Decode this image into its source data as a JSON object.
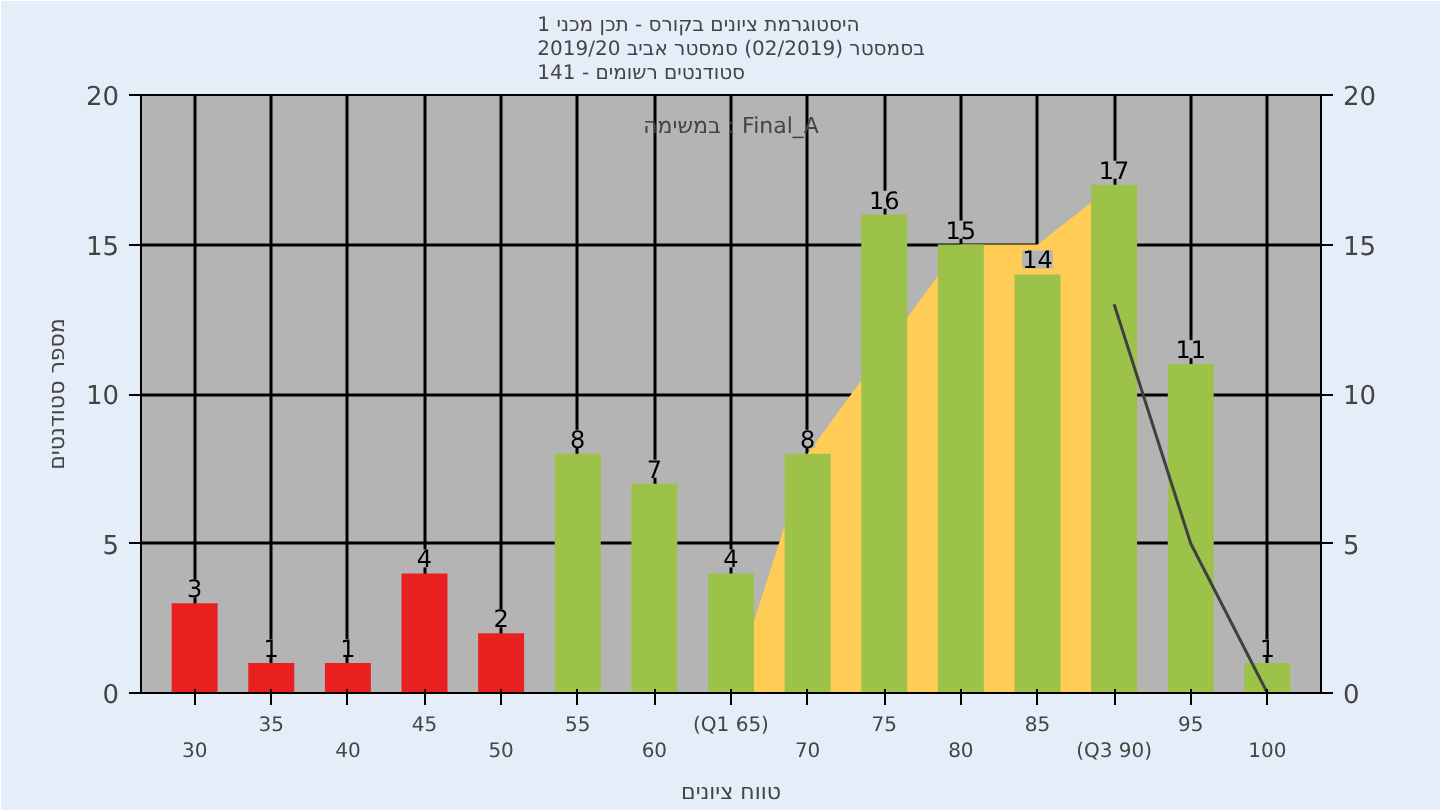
{
  "chart_data": {
    "type": "bar",
    "title": "היסטוגרמת ציונים בקורס - תכן מכני 1\nבסמסטר (02/2019) סמסטר אביב 2019/20\nסטודנטים רשומים - 141",
    "xlabel": "טווח ציונים",
    "ylabel": "מספר סטודנטים",
    "annotations": [
      "במשימה : Final_A"
    ],
    "categories": [
      "30",
      "35",
      "40",
      "45",
      "50",
      "55",
      "60",
      "(Q1 65)",
      "70",
      "75",
      "80",
      "85",
      "(Q3 90)",
      "95",
      "100"
    ],
    "series": [
      {
        "type": "area",
        "color": "#ffcc55",
        "values": [
          null,
          null,
          null,
          null,
          null,
          null,
          null,
          0,
          8,
          null,
          15,
          15,
          17,
          null,
          null
        ]
      },
      {
        "type": "line",
        "color": "#404040",
        "values": [
          null,
          null,
          null,
          null,
          null,
          null,
          null,
          null,
          null,
          null,
          null,
          null,
          13,
          5,
          0
        ]
      },
      {
        "value_labels": [
          "3",
          "1",
          "1",
          "4",
          "2",
          "8",
          "7",
          "4",
          "8",
          "16",
          "15",
          "14",
          "17",
          "11",
          "1"
        ],
        "colors": [
          "#e82020",
          "#e82020",
          "#e82020",
          "#e82020",
          "#e82020",
          "#9cc24a",
          "#9cc24a",
          "#9cc24a",
          "#9cc24a",
          "#9cc24a",
          "#9cc24a",
          "#9cc24a",
          "#9cc24a",
          "#9cc24a",
          "#9cc24a"
        ],
        "values": [
          3,
          1,
          1,
          4,
          2,
          8,
          7,
          4,
          8,
          16,
          15,
          14,
          17,
          11,
          1
        ]
      }
    ],
    "ylim": [
      0,
      20
    ],
    "yticks": [
      0,
      5,
      10,
      15,
      20
    ],
    "y2lim": [
      0,
      20
    ],
    "y2ticks": [
      0,
      5,
      10,
      15,
      20
    ],
    "grid": true
  }
}
